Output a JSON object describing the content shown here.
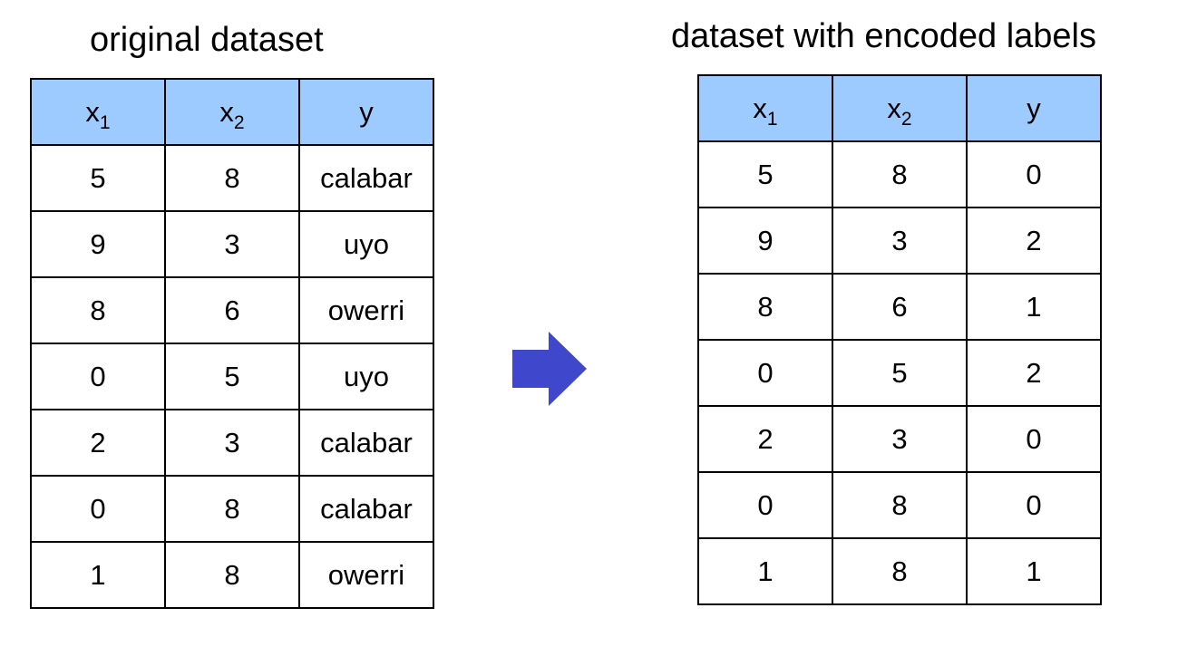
{
  "left": {
    "title": "original dataset",
    "headers": [
      {
        "base": "x",
        "sub": "1"
      },
      {
        "base": "x",
        "sub": "2"
      },
      {
        "base": "y",
        "sub": ""
      }
    ],
    "rows": [
      [
        "5",
        "8",
        "calabar"
      ],
      [
        "9",
        "3",
        "uyo"
      ],
      [
        "8",
        "6",
        "owerri"
      ],
      [
        "0",
        "5",
        "uyo"
      ],
      [
        "2",
        "3",
        "calabar"
      ],
      [
        "0",
        "8",
        "calabar"
      ],
      [
        "1",
        "8",
        "owerri"
      ]
    ]
  },
  "right": {
    "title": "dataset with encoded labels",
    "headers": [
      {
        "base": "x",
        "sub": "1"
      },
      {
        "base": "x",
        "sub": "2"
      },
      {
        "base": "y",
        "sub": ""
      }
    ],
    "rows": [
      [
        "5",
        "8",
        "0"
      ],
      [
        "9",
        "3",
        "2"
      ],
      [
        "8",
        "6",
        "1"
      ],
      [
        "0",
        "5",
        "2"
      ],
      [
        "2",
        "3",
        "0"
      ],
      [
        "0",
        "8",
        "0"
      ],
      [
        "1",
        "8",
        "1"
      ]
    ]
  },
  "colors": {
    "header_fill": "#9ecbff",
    "arrow_fill": "#3f48cc",
    "border": "#000000"
  },
  "icons": {
    "transform_arrow": "right-arrow-icon"
  }
}
